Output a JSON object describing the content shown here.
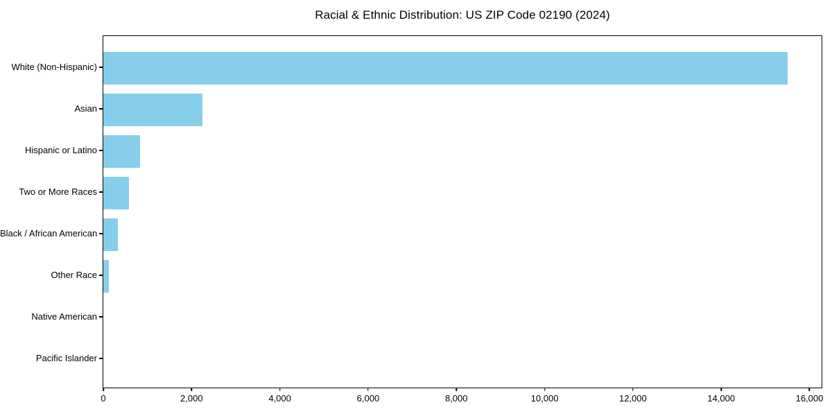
{
  "chart_data": {
    "type": "bar",
    "orientation": "horizontal",
    "title": "Racial & Ethnic Distribution: US ZIP Code 02190 (2024)",
    "xlabel": "",
    "ylabel": "",
    "categories": [
      "White (Non-Hispanic)",
      "Asian",
      "Hispanic or Latino",
      "Two or More Races",
      "Black / African American",
      "Other Race",
      "Native American",
      "Pacific Islander"
    ],
    "values": [
      15500,
      2250,
      830,
      575,
      335,
      130,
      0,
      0
    ],
    "xlim": [
      0,
      16275
    ],
    "xticks": [
      0,
      2000,
      4000,
      6000,
      8000,
      10000,
      12000,
      14000,
      16000
    ],
    "xtick_labels": [
      "0",
      "2,000",
      "4,000",
      "6,000",
      "8,000",
      "10,000",
      "12,000",
      "14,000",
      "16,000"
    ],
    "bar_color": "#87CEEB",
    "frame_color": "#000000",
    "text_color": "#000000",
    "background_color": "#ffffff",
    "grid": false,
    "legend": "none"
  }
}
